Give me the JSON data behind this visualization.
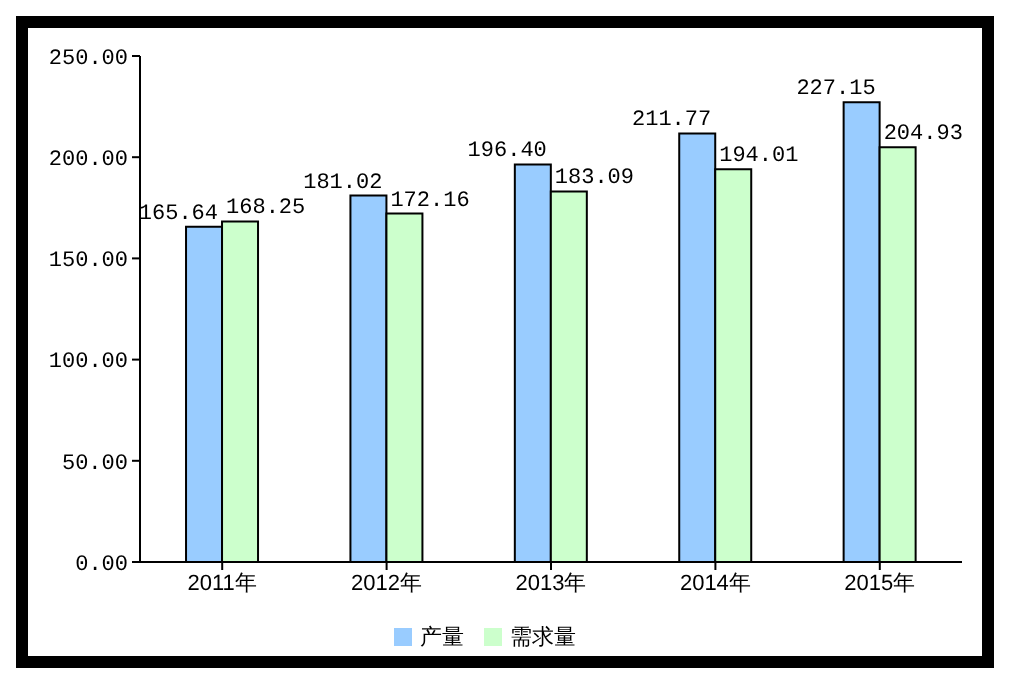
{
  "chart_data": {
    "type": "bar",
    "categories": [
      "2011年",
      "2012年",
      "2013年",
      "2014年",
      "2015年"
    ],
    "series": [
      {
        "name": "产量",
        "color": "#99ccff",
        "values": [
          165.64,
          181.02,
          196.4,
          211.77,
          227.15
        ],
        "value_labels": [
          "165.64",
          "181.02",
          "196.40",
          "211.77",
          "227.15"
        ]
      },
      {
        "name": "需求量",
        "color": "#ccffcc",
        "values": [
          168.25,
          172.16,
          183.09,
          194.01,
          204.93
        ],
        "value_labels": [
          "168.25",
          "172.16",
          "183.09",
          "194.01",
          "204.93"
        ]
      }
    ],
    "ylim": [
      0,
      250
    ],
    "yticks": [
      {
        "value": 0,
        "label": "0.00"
      },
      {
        "value": 50,
        "label": "50.00"
      },
      {
        "value": 100,
        "label": "100.00"
      },
      {
        "value": 150,
        "label": "150.00"
      },
      {
        "value": 200,
        "label": "200.00"
      },
      {
        "value": 250,
        "label": "250.00"
      }
    ],
    "grid": false,
    "legend": "bottom"
  }
}
